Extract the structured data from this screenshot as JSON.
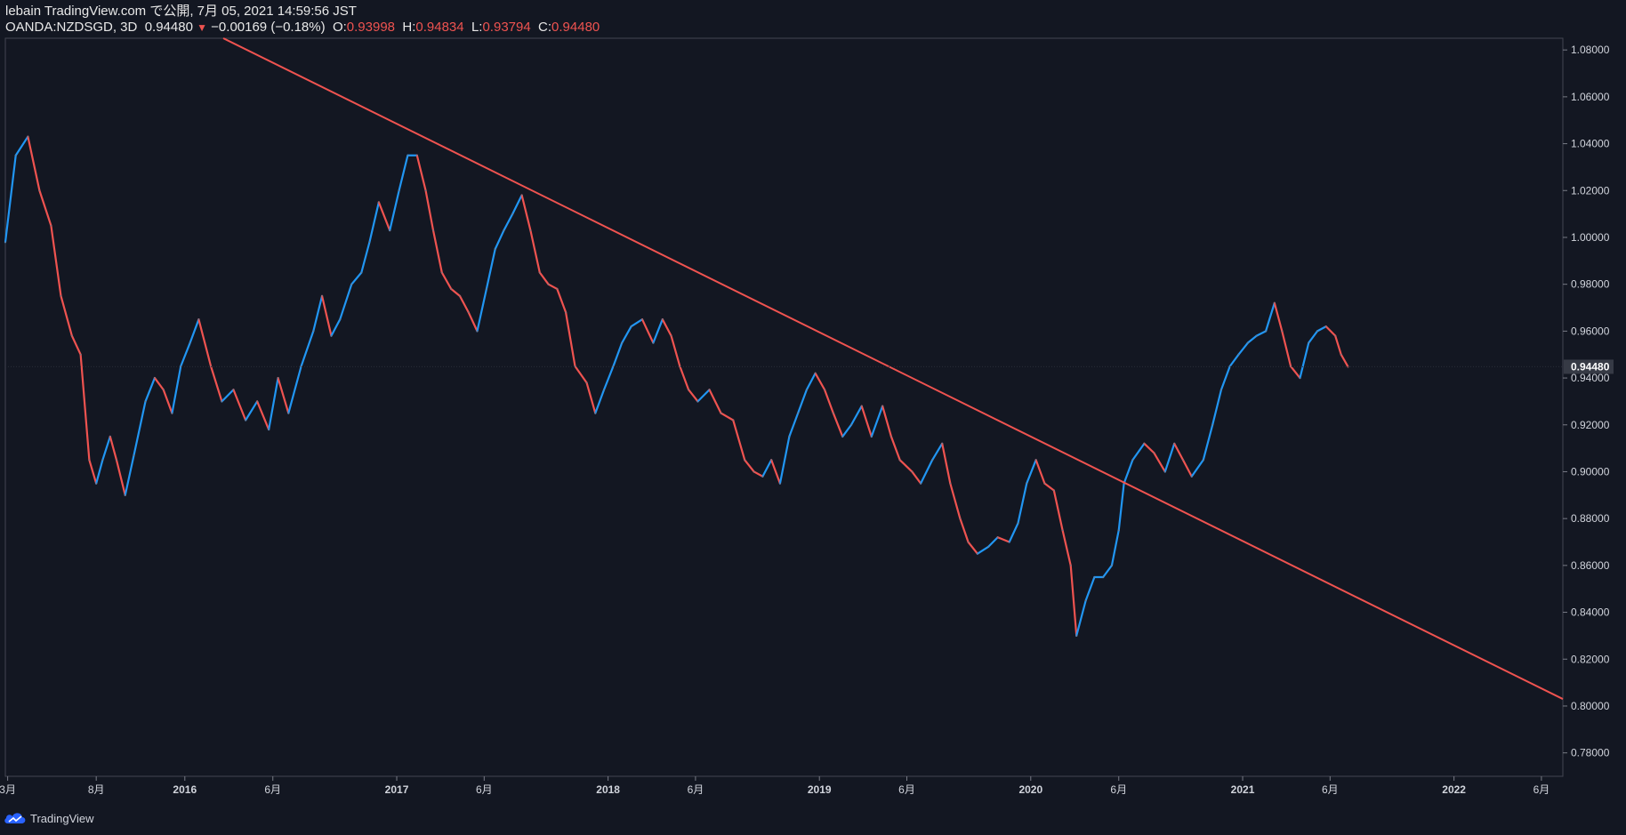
{
  "header": {
    "publish_line": "lebain TradingView.com で公開, 7月 05, 2021 14:59:56 JST",
    "symbol": "OANDA:NZDSGD, 3D",
    "last": "0.94480",
    "change": "−0.00169 (−0.18%)",
    "o_label": "O:",
    "o_value": "0.93998",
    "h_label": "H:",
    "h_value": "0.94834",
    "l_label": "L:",
    "l_value": "0.93794",
    "c_label": "C:",
    "c_value": "0.94480"
  },
  "footer": {
    "brand": "TradingView"
  },
  "colors": {
    "background": "#131722",
    "up": "#2196f3",
    "down": "#ef5350",
    "trendline": "#ef5350",
    "text": "#d1d4dc"
  },
  "chart_data": {
    "type": "line",
    "symbol": "OANDA:NZDSGD",
    "timeframe": "3D",
    "xlim": [
      "2015-02-25",
      "2022-07-08"
    ],
    "ylim": [
      0.77,
      1.085
    ],
    "y_ticks": [
      "1.08000",
      "1.06000",
      "1.04000",
      "1.02000",
      "1.00000",
      "0.98000",
      "0.96000",
      "0.94000",
      "0.92000",
      "0.90000",
      "0.88000",
      "0.86000",
      "0.84000",
      "0.82000",
      "0.80000",
      "0.78000"
    ],
    "x_ticks": [
      {
        "label": "3月",
        "date": "2015-03-01",
        "bold": false
      },
      {
        "label": "8月",
        "date": "2015-08-01",
        "bold": false
      },
      {
        "label": "2016",
        "date": "2016-01-01",
        "bold": true
      },
      {
        "label": "6月",
        "date": "2016-06-01",
        "bold": false
      },
      {
        "label": "2017",
        "date": "2017-01-01",
        "bold": true
      },
      {
        "label": "6月",
        "date": "2017-06-01",
        "bold": false
      },
      {
        "label": "2018",
        "date": "2018-01-01",
        "bold": true
      },
      {
        "label": "6月",
        "date": "2018-06-01",
        "bold": false
      },
      {
        "label": "2019",
        "date": "2019-01-01",
        "bold": true
      },
      {
        "label": "6月",
        "date": "2019-06-01",
        "bold": false
      },
      {
        "label": "2020",
        "date": "2020-01-01",
        "bold": true
      },
      {
        "label": "6月",
        "date": "2020-06-01",
        "bold": false
      },
      {
        "label": "2021",
        "date": "2021-01-01",
        "bold": true
      },
      {
        "label": "6月",
        "date": "2021-06-01",
        "bold": false
      },
      {
        "label": "2022",
        "date": "2022-01-01",
        "bold": true
      },
      {
        "label": "6月",
        "date": "2022-06-01",
        "bold": false
      }
    ],
    "last_price": {
      "label": "0.94480",
      "value": 0.9448
    },
    "series": [
      {
        "values": [
          [
            "2015-02-25",
            0.998
          ],
          [
            "2015-03-15",
            1.035
          ],
          [
            "2015-04-05",
            1.043
          ],
          [
            "2015-04-25",
            1.02
          ],
          [
            "2015-05-15",
            1.005
          ],
          [
            "2015-06-01",
            0.975
          ],
          [
            "2015-06-20",
            0.958
          ],
          [
            "2015-07-05",
            0.95
          ],
          [
            "2015-07-20",
            0.905
          ],
          [
            "2015-08-01",
            0.895
          ],
          [
            "2015-08-12",
            0.905
          ],
          [
            "2015-08-25",
            0.915
          ],
          [
            "2015-09-05",
            0.905
          ],
          [
            "2015-09-20",
            0.89
          ],
          [
            "2015-10-05",
            0.907
          ],
          [
            "2015-10-25",
            0.93
          ],
          [
            "2015-11-10",
            0.94
          ],
          [
            "2015-11-25",
            0.935
          ],
          [
            "2015-12-10",
            0.925
          ],
          [
            "2015-12-25",
            0.945
          ],
          [
            "2016-01-10",
            0.955
          ],
          [
            "2016-01-25",
            0.965
          ],
          [
            "2016-02-15",
            0.945
          ],
          [
            "2016-03-05",
            0.93
          ],
          [
            "2016-03-25",
            0.935
          ],
          [
            "2016-04-15",
            0.922
          ],
          [
            "2016-05-05",
            0.93
          ],
          [
            "2016-05-25",
            0.918
          ],
          [
            "2016-06-10",
            0.94
          ],
          [
            "2016-06-28",
            0.925
          ],
          [
            "2016-07-20",
            0.945
          ],
          [
            "2016-08-10",
            0.96
          ],
          [
            "2016-08-25",
            0.975
          ],
          [
            "2016-09-10",
            0.958
          ],
          [
            "2016-09-25",
            0.965
          ],
          [
            "2016-10-15",
            0.98
          ],
          [
            "2016-11-01",
            0.985
          ],
          [
            "2016-11-15",
            0.998
          ],
          [
            "2016-12-01",
            1.015
          ],
          [
            "2016-12-20",
            1.003
          ],
          [
            "2017-01-05",
            1.02
          ],
          [
            "2017-01-20",
            1.035
          ],
          [
            "2017-02-05",
            1.035
          ],
          [
            "2017-02-20",
            1.02
          ],
          [
            "2017-03-05",
            1.003
          ],
          [
            "2017-03-20",
            0.985
          ],
          [
            "2017-04-05",
            0.978
          ],
          [
            "2017-04-20",
            0.975
          ],
          [
            "2017-05-05",
            0.968
          ],
          [
            "2017-05-20",
            0.96
          ],
          [
            "2017-06-05",
            0.978
          ],
          [
            "2017-06-20",
            0.995
          ],
          [
            "2017-07-05",
            1.003
          ],
          [
            "2017-07-20",
            1.01
          ],
          [
            "2017-08-05",
            1.018
          ],
          [
            "2017-08-20",
            1.003
          ],
          [
            "2017-09-05",
            0.985
          ],
          [
            "2017-09-20",
            0.98
          ],
          [
            "2017-10-05",
            0.978
          ],
          [
            "2017-10-20",
            0.968
          ],
          [
            "2017-11-05",
            0.945
          ],
          [
            "2017-11-25",
            0.938
          ],
          [
            "2017-12-10",
            0.925
          ],
          [
            "2017-12-25",
            0.935
          ],
          [
            "2018-01-10",
            0.945
          ],
          [
            "2018-01-25",
            0.955
          ],
          [
            "2018-02-10",
            0.962
          ],
          [
            "2018-03-01",
            0.965
          ],
          [
            "2018-03-20",
            0.955
          ],
          [
            "2018-04-05",
            0.965
          ],
          [
            "2018-04-20",
            0.958
          ],
          [
            "2018-05-05",
            0.945
          ],
          [
            "2018-05-20",
            0.935
          ],
          [
            "2018-06-05",
            0.93
          ],
          [
            "2018-06-25",
            0.935
          ],
          [
            "2018-07-15",
            0.925
          ],
          [
            "2018-08-05",
            0.922
          ],
          [
            "2018-08-25",
            0.905
          ],
          [
            "2018-09-10",
            0.9
          ],
          [
            "2018-09-25",
            0.898
          ],
          [
            "2018-10-10",
            0.905
          ],
          [
            "2018-10-25",
            0.895
          ],
          [
            "2018-11-10",
            0.915
          ],
          [
            "2018-11-25",
            0.925
          ],
          [
            "2018-12-10",
            0.935
          ],
          [
            "2018-12-25",
            0.942
          ],
          [
            "2019-01-10",
            0.935
          ],
          [
            "2019-01-25",
            0.925
          ],
          [
            "2019-02-10",
            0.915
          ],
          [
            "2019-02-25",
            0.92
          ],
          [
            "2019-03-15",
            0.928
          ],
          [
            "2019-04-01",
            0.915
          ],
          [
            "2019-04-20",
            0.928
          ],
          [
            "2019-05-05",
            0.915
          ],
          [
            "2019-05-20",
            0.905
          ],
          [
            "2019-06-10",
            0.9
          ],
          [
            "2019-06-25",
            0.895
          ],
          [
            "2019-07-15",
            0.905
          ],
          [
            "2019-08-01",
            0.912
          ],
          [
            "2019-08-15",
            0.895
          ],
          [
            "2019-09-01",
            0.88
          ],
          [
            "2019-09-15",
            0.87
          ],
          [
            "2019-10-01",
            0.865
          ],
          [
            "2019-10-20",
            0.868
          ],
          [
            "2019-11-05",
            0.872
          ],
          [
            "2019-11-25",
            0.87
          ],
          [
            "2019-12-10",
            0.878
          ],
          [
            "2019-12-25",
            0.895
          ],
          [
            "2020-01-10",
            0.905
          ],
          [
            "2020-01-25",
            0.895
          ],
          [
            "2020-02-10",
            0.892
          ],
          [
            "2020-02-25",
            0.875
          ],
          [
            "2020-03-10",
            0.86
          ],
          [
            "2020-03-20",
            0.83
          ],
          [
            "2020-04-05",
            0.845
          ],
          [
            "2020-04-20",
            0.855
          ],
          [
            "2020-05-05",
            0.855
          ],
          [
            "2020-05-20",
            0.86
          ],
          [
            "2020-06-01",
            0.875
          ],
          [
            "2020-06-10",
            0.895
          ],
          [
            "2020-06-25",
            0.905
          ],
          [
            "2020-07-15",
            0.912
          ],
          [
            "2020-08-01",
            0.908
          ],
          [
            "2020-08-20",
            0.9
          ],
          [
            "2020-09-05",
            0.912
          ],
          [
            "2020-09-20",
            0.905
          ],
          [
            "2020-10-05",
            0.898
          ],
          [
            "2020-10-25",
            0.905
          ],
          [
            "2020-11-10",
            0.92
          ],
          [
            "2020-11-25",
            0.935
          ],
          [
            "2020-12-10",
            0.945
          ],
          [
            "2020-12-25",
            0.95
          ],
          [
            "2021-01-10",
            0.955
          ],
          [
            "2021-01-25",
            0.958
          ],
          [
            "2021-02-10",
            0.96
          ],
          [
            "2021-02-25",
            0.972
          ],
          [
            "2021-03-10",
            0.96
          ],
          [
            "2021-03-25",
            0.945
          ],
          [
            "2021-04-10",
            0.94
          ],
          [
            "2021-04-25",
            0.955
          ],
          [
            "2021-05-10",
            0.96
          ],
          [
            "2021-05-25",
            0.962
          ],
          [
            "2021-06-10",
            0.958
          ],
          [
            "2021-06-20",
            0.95
          ],
          [
            "2021-07-02",
            0.9448
          ]
        ]
      }
    ],
    "trendline": {
      "start": [
        "2017-01-05",
        1.048
      ],
      "end": [
        "2022-07-08",
        0.803
      ],
      "color": "#ef5350"
    }
  }
}
